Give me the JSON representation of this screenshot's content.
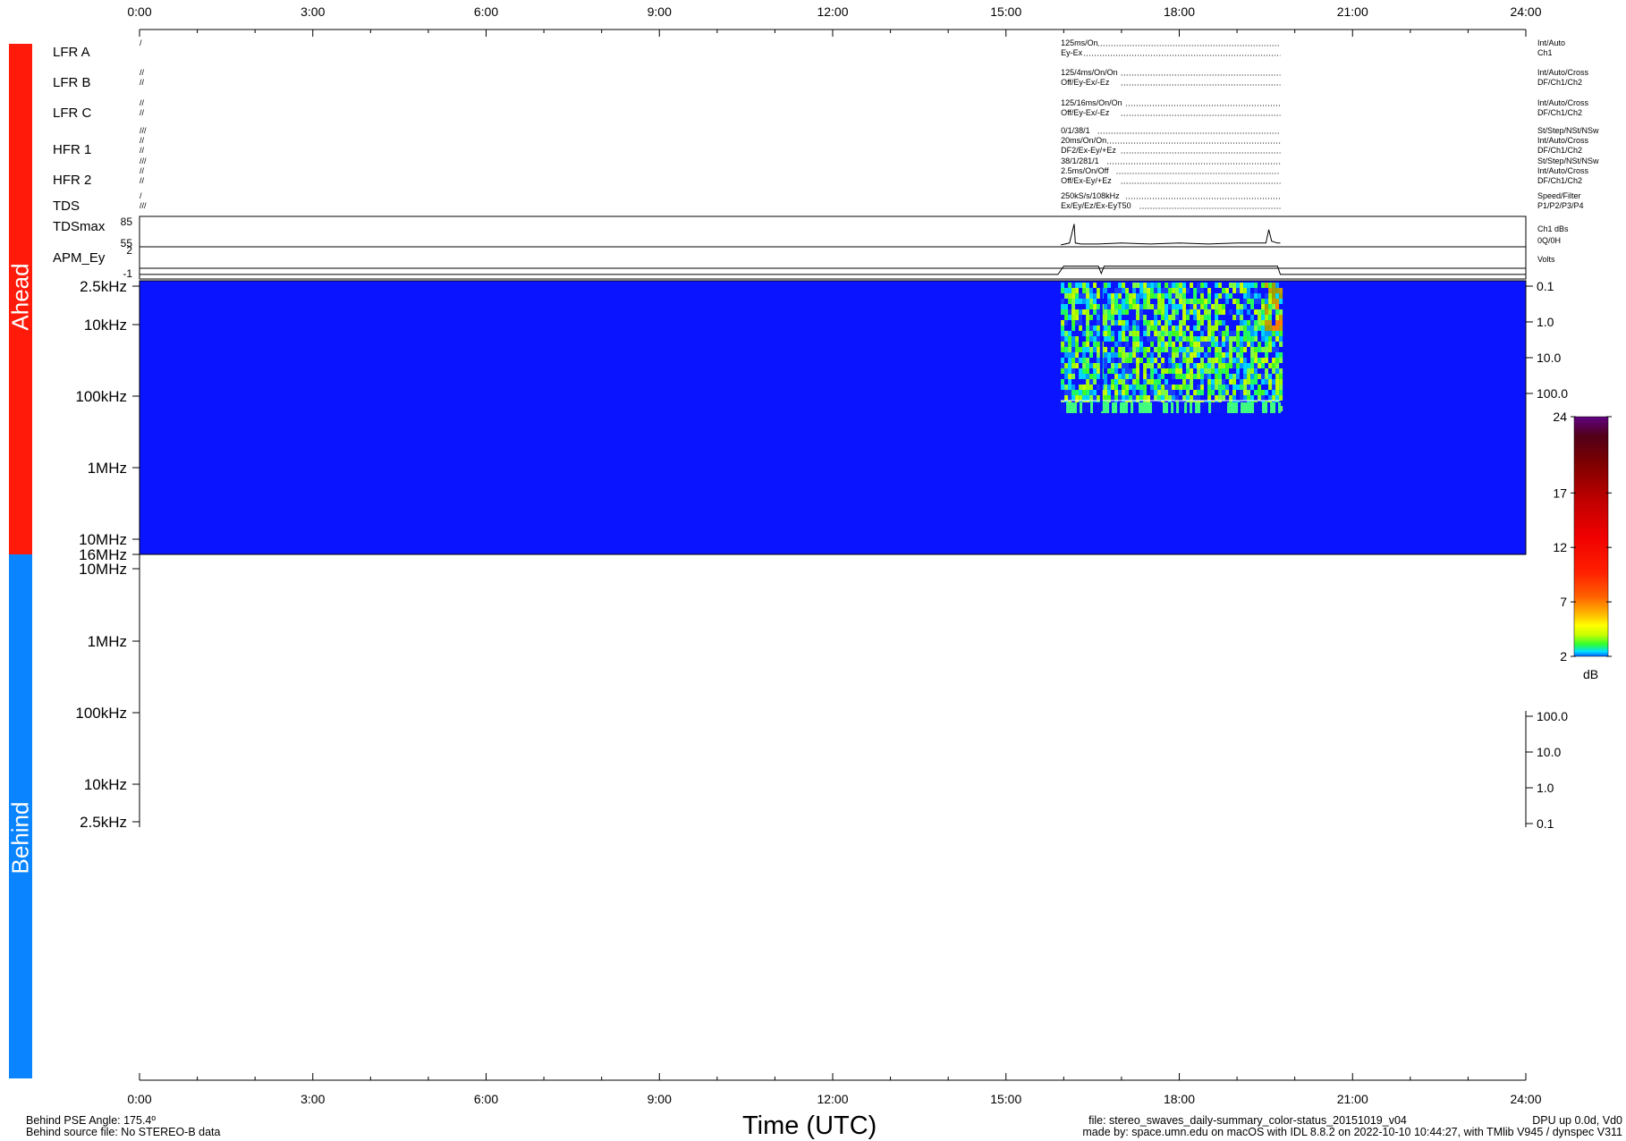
{
  "bars": {
    "ahead": {
      "label": "Ahead",
      "color": "#ff1a0a"
    },
    "behind": {
      "label": "Behind",
      "color": "#0a84ff"
    }
  },
  "footer": {
    "left_line1": "Behind PSE Angle:  175.4º",
    "left_line2": "Behind source file: No STEREO-B data",
    "x_title": "Time (UTC)",
    "file_line": "file: stereo_swaves_daily-summary_color-status_20151019_v04",
    "made_by": "made by: space.umn.edu on macOS with IDL 8.8.2 on 2022-10-10 10:44:27, with TMlib V945 / dynspec V311",
    "dpu": "DPU up 0.0d, Vd0"
  },
  "chart_data": [
    {
      "name": "status",
      "type": "table",
      "time_ticks": [
        "0:00",
        "3:00",
        "6:00",
        "9:00",
        "12:00",
        "15:00",
        "18:00",
        "21:00",
        "24:00"
      ],
      "x_range_hours": [
        0,
        24
      ],
      "rows": [
        {
          "label": "LFR A",
          "marks": [
            "/"
          ],
          "values": [
            "125ms/On",
            "Ey-Ex"
          ],
          "right": [
            "Int/Auto",
            "Ch1"
          ],
          "active_hours": [
            15.95,
            19.75
          ]
        },
        {
          "label": "LFR B",
          "marks": [
            "//",
            "//"
          ],
          "values": [
            "125/4ms/On/On",
            "Off/Ey-Ex/-Ez"
          ],
          "right": [
            "Int/Auto/Cross",
            "DF/Ch1/Ch2"
          ],
          "active_hours": [
            15.95,
            19.75
          ]
        },
        {
          "label": "LFR C",
          "marks": [
            "//",
            "//"
          ],
          "values": [
            "125/16ms/On/On",
            "Off/Ey-Ex/-Ez"
          ],
          "right": [
            "Int/Auto/Cross",
            "DF/Ch1/Ch2"
          ],
          "active_hours": [
            15.95,
            19.75
          ]
        },
        {
          "label": "HFR 1",
          "marks": [
            "///",
            "//",
            "//"
          ],
          "values": [
            "0/1/38/1",
            "20ms/On/On",
            "DF2/Ex-Ey/+Ez"
          ],
          "right": [
            "St/Step/NSt/NSw",
            "Int/Auto/Cross",
            "DF/Ch1/Ch2"
          ],
          "active_hours": [
            15.95,
            19.75
          ]
        },
        {
          "label": "HFR 2",
          "marks": [
            "///",
            "//",
            "//"
          ],
          "values": [
            "38/1/281/1",
            "2.5ms/On/Off",
            "Off/Ex-Ey/+Ez"
          ],
          "right": [
            "St/Step/NSt/NSw",
            "Int/Auto/Cross",
            "DF/Ch1/Ch2"
          ],
          "active_hours": [
            15.95,
            19.75
          ]
        },
        {
          "label": "TDS",
          "marks": [
            "/",
            "///"
          ],
          "values": [
            "250kS/s/108kHz",
            "Ex/Ey/Ez/Ex-EyT50"
          ],
          "right": [
            "Speed/Filter",
            "P1/P2/P3/P4"
          ],
          "active_hours": [
            15.95,
            19.75
          ]
        }
      ]
    },
    {
      "name": "tdsmax",
      "type": "line",
      "label": "TDSmax",
      "yticks": [
        85,
        55
      ],
      "ylim": [
        55,
        85
      ],
      "right": [
        "Ch1 dBs",
        "0Q/0H"
      ],
      "x_hours": [
        15.95,
        16.1,
        16.18,
        16.2,
        16.3,
        16.6,
        17.0,
        17.5,
        18.0,
        18.5,
        19.0,
        19.5,
        19.55,
        19.6,
        19.7,
        19.75
      ],
      "values": [
        56,
        58,
        78,
        58,
        57,
        57,
        58,
        57,
        58,
        57,
        58,
        58,
        72,
        60,
        58,
        58
      ]
    },
    {
      "name": "apm",
      "type": "line",
      "label": "APM_Ey",
      "yticks": [
        2,
        -1
      ],
      "ylim": [
        -1,
        2
      ],
      "right": [
        "Volts"
      ],
      "x_hours": [
        0,
        15.9,
        16.0,
        16.6,
        16.65,
        16.7,
        19.7,
        19.75,
        24
      ],
      "values": [
        -0.7,
        -0.7,
        0.2,
        0.2,
        -0.6,
        0.2,
        0.2,
        -0.7,
        -0.7
      ]
    },
    {
      "name": "spectrogram-ahead",
      "type": "heatmap",
      "yticks": [
        "2.5kHz",
        "10kHz",
        "100kHz",
        "1MHz",
        "10MHz",
        "16MHz"
      ],
      "right_ticks": [
        "0.1",
        "1.0",
        "10.0",
        "100.0"
      ],
      "background_color": "#0a14ff",
      "data_hours": [
        15.95,
        19.75
      ]
    },
    {
      "name": "spectrogram-behind",
      "type": "heatmap",
      "yticks": [
        "10MHz",
        "1MHz",
        "100kHz",
        "10kHz",
        "2.5kHz"
      ],
      "right_ticks": [
        "100.0",
        "10.0",
        "1.0",
        "0.1"
      ]
    },
    {
      "name": "colorbar",
      "type": "heatmap",
      "ticks": [
        24,
        17,
        12,
        7,
        2
      ],
      "range": [
        2,
        24
      ],
      "unit": "dB"
    }
  ]
}
